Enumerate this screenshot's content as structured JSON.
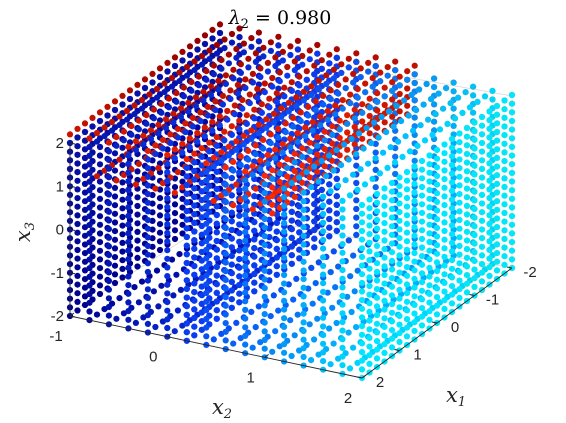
{
  "chart_data": {
    "type": "scatter3d",
    "title": {
      "symbol": "λ",
      "subscript": "2",
      "equals": " = ",
      "value": "0.980"
    },
    "axes": {
      "x1": {
        "symbol": "x",
        "subscript": "1",
        "range": [
          -2,
          2
        ],
        "ticks": [
          -2,
          -1,
          0,
          1,
          2
        ],
        "tick_labels": [
          "-2",
          "-1",
          "0",
          "1",
          "2"
        ]
      },
      "x2": {
        "symbol": "x",
        "subscript": "2",
        "range": [
          -1,
          2
        ],
        "ticks": [
          -1,
          0,
          1,
          2
        ],
        "tick_labels": [
          "-1",
          "0",
          "1",
          "2"
        ]
      },
      "x3": {
        "symbol": "x",
        "subscript": "3",
        "range": [
          -2,
          2
        ],
        "ticks": [
          -2,
          -1,
          0,
          1,
          2
        ],
        "tick_labels": [
          "-2",
          "-1",
          "0",
          "1",
          "2"
        ]
      }
    },
    "grid": false,
    "colormap": "jet",
    "point_sets": [
      {
        "x1": [
          -2,
          2
        ],
        "x2": [
          -1,
          0.2
        ],
        "x3": [
          -2,
          2
        ],
        "color_scale": "blue",
        "note_color_range": [
          "#00008c",
          "#0a3cf0"
        ]
      },
      {
        "x1": [
          -2,
          2
        ],
        "x2": [
          0.2,
          2
        ],
        "x3": [
          -2,
          2
        ],
        "color_scale": "blue-to-cyan",
        "note_color_range": [
          "#0a3cf0",
          "#00e6ff"
        ]
      },
      {
        "x1": [
          -2,
          2
        ],
        "x2": [
          -1,
          1
        ],
        "x3": [
          1.2,
          2.2
        ],
        "color_scale": "red-to-dark-red",
        "note_color_range": [
          "#ff2a00",
          "#960000"
        ]
      },
      {
        "x1": [
          -2,
          -0.7
        ],
        "x2": [
          0.2,
          2
        ],
        "x3": [
          -2,
          2
        ],
        "color_scale": "orange-to-yellow",
        "note_color_range": [
          "#ff6a00",
          "#ffee00"
        ]
      }
    ]
  }
}
